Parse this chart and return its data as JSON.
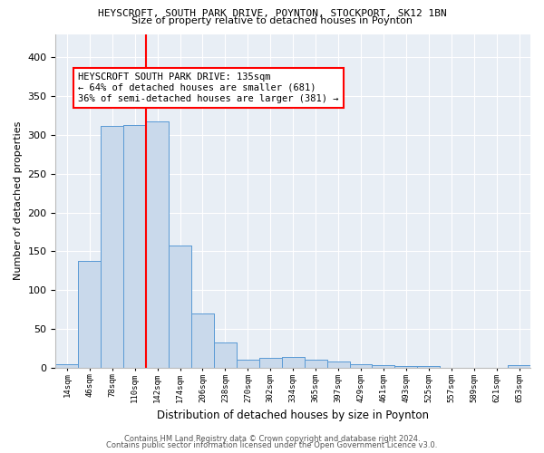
{
  "title1": "HEYSCROFT, SOUTH PARK DRIVE, POYNTON, STOCKPORT, SK12 1BN",
  "title2": "Size of property relative to detached houses in Poynton",
  "xlabel": "Distribution of detached houses by size in Poynton",
  "ylabel": "Number of detached properties",
  "bar_color": "#c9d9eb",
  "bar_edge_color": "#5b9bd5",
  "background_color": "#e8eef5",
  "grid_color": "#ffffff",
  "bin_labels": [
    "14sqm",
    "46sqm",
    "78sqm",
    "110sqm",
    "142sqm",
    "174sqm",
    "206sqm",
    "238sqm",
    "270sqm",
    "302sqm",
    "334sqm",
    "365sqm",
    "397sqm",
    "429sqm",
    "461sqm",
    "493sqm",
    "525sqm",
    "557sqm",
    "589sqm",
    "621sqm",
    "653sqm"
  ],
  "bar_heights": [
    4,
    137,
    311,
    313,
    317,
    157,
    70,
    32,
    10,
    13,
    14,
    10,
    8,
    5,
    3,
    2,
    2,
    0,
    0,
    0,
    3
  ],
  "red_line_bin_index": 4,
  "annotation_title": "HEYSCROFT SOUTH PARK DRIVE: 135sqm",
  "annotation_line2": "← 64% of detached houses are smaller (681)",
  "annotation_line3": "36% of semi-detached houses are larger (381) →",
  "ylim": [
    0,
    430
  ],
  "yticks": [
    0,
    50,
    100,
    150,
    200,
    250,
    300,
    350,
    400
  ],
  "footer1": "Contains HM Land Registry data © Crown copyright and database right 2024.",
  "footer2": "Contains public sector information licensed under the Open Government Licence v3.0."
}
